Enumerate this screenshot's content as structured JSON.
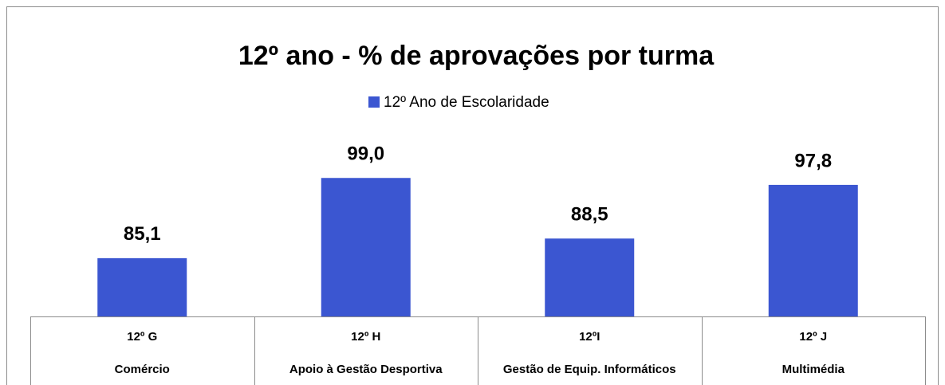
{
  "chart_data": {
    "type": "bar",
    "title": "12º ano - % de aprovações por turma",
    "categories": [
      [
        "12º G",
        "Comércio"
      ],
      [
        "12º H",
        "Apoio à Gestão Desportiva"
      ],
      [
        "12ºI",
        "Gestão de Equip. Informáticos"
      ],
      [
        "12º J",
        "Multimédia"
      ]
    ],
    "series": [
      {
        "name": "12º Ano de Escolaridade",
        "color": "#3b56d1",
        "values": [
          85.1,
          99.0,
          88.5,
          97.8
        ],
        "value_labels": [
          "85,1",
          "99,0",
          "88,5",
          "97,8"
        ]
      }
    ],
    "ylim": [
      75,
      100
    ],
    "legend": "top"
  }
}
